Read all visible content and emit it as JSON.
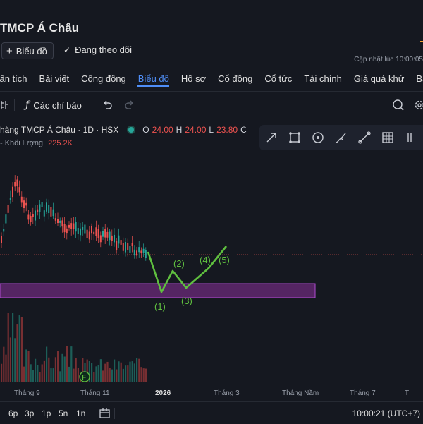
{
  "header": {
    "company_title": "TMCP Á Châu",
    "chart_button_label": "Biểu đồ",
    "follow_label": "Đang theo dõi",
    "updated_label": "Cập nhật lúc  10:00:05"
  },
  "nav": {
    "tabs": [
      {
        "label": "ân tích"
      },
      {
        "label": "Bài viết"
      },
      {
        "label": "Cộng đồng"
      },
      {
        "label": "Biểu đồ",
        "active": true
      },
      {
        "label": "Hồ sơ"
      },
      {
        "label": "Cổ đông"
      },
      {
        "label": "Cổ tức"
      },
      {
        "label": "Tài chính"
      },
      {
        "label": "Giá quá khứ"
      },
      {
        "label": "Báo cáo"
      }
    ]
  },
  "toolbar": {
    "indicators_label": "Các chỉ báo"
  },
  "legend": {
    "symbol": "hàng TMCP Á Châu · 1D · HSX",
    "open_label": "O",
    "open_value": "24.00",
    "high_label": "H",
    "high_value": "24.00",
    "low_label": "L",
    "low_value": "23.80",
    "close_label": "C",
    "volume_label": "- Khối lượng",
    "volume_value": "225.2K"
  },
  "annotations": {
    "wave_labels": [
      "(1)",
      "(2)",
      "(3)",
      "(4)",
      "(5)"
    ],
    "event_marker": "F"
  },
  "time_axis": {
    "ticks": [
      "Tháng 9",
      "Tháng 11",
      "2026",
      "Tháng 3",
      "Tháng Năm",
      "Tháng 7",
      "T"
    ]
  },
  "bottom_bar": {
    "ranges": [
      "6p",
      "3p",
      "1p",
      "5n",
      "1n"
    ],
    "clock": "10:00:21 (UTC+7)"
  },
  "colors": {
    "up": "#26a69a",
    "down": "#ef5350",
    "wave": "#5fbf3f",
    "zone_fill": "#6b2a7a",
    "zone_border": "#b04cd0",
    "accent": "#4f8ef7"
  }
}
